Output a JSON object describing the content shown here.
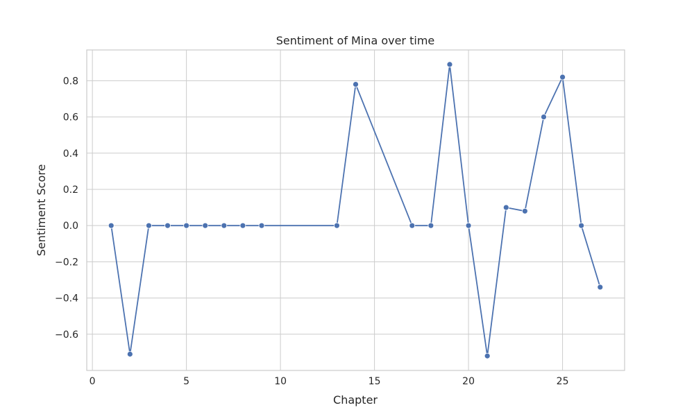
{
  "chart_data": {
    "type": "line",
    "title": "Sentiment of Mina over time",
    "xlabel": "Chapter",
    "ylabel": "Sentiment Score",
    "xlim": [
      -0.3,
      28.3
    ],
    "ylim": [
      -0.8,
      0.97
    ],
    "xticks": [
      0,
      5,
      10,
      15,
      20,
      25
    ],
    "yticks": [
      -0.6,
      -0.4,
      -0.2,
      0.0,
      0.2,
      0.4,
      0.6,
      0.8
    ],
    "xtick_labels": [
      "0",
      "5",
      "10",
      "15",
      "20",
      "25"
    ],
    "ytick_labels": [
      "−0.6",
      "−0.4",
      "−0.2",
      "0.0",
      "0.2",
      "0.4",
      "0.6",
      "0.8"
    ],
    "grid": true,
    "series": [
      {
        "x": [
          1,
          2,
          3,
          4,
          5,
          6,
          7,
          8,
          9,
          13,
          14,
          17,
          18,
          19,
          20,
          21,
          22,
          23,
          24,
          25,
          26,
          27
        ],
        "y": [
          0.0,
          -0.71,
          0.0,
          0.0,
          0.0,
          0.0,
          0.0,
          0.0,
          0.0,
          0.0,
          0.78,
          0.0,
          0.0,
          0.89,
          0.0,
          -0.72,
          0.1,
          0.08,
          0.6,
          0.82,
          0.0,
          -0.34
        ],
        "color": "#4c72b0"
      }
    ]
  }
}
